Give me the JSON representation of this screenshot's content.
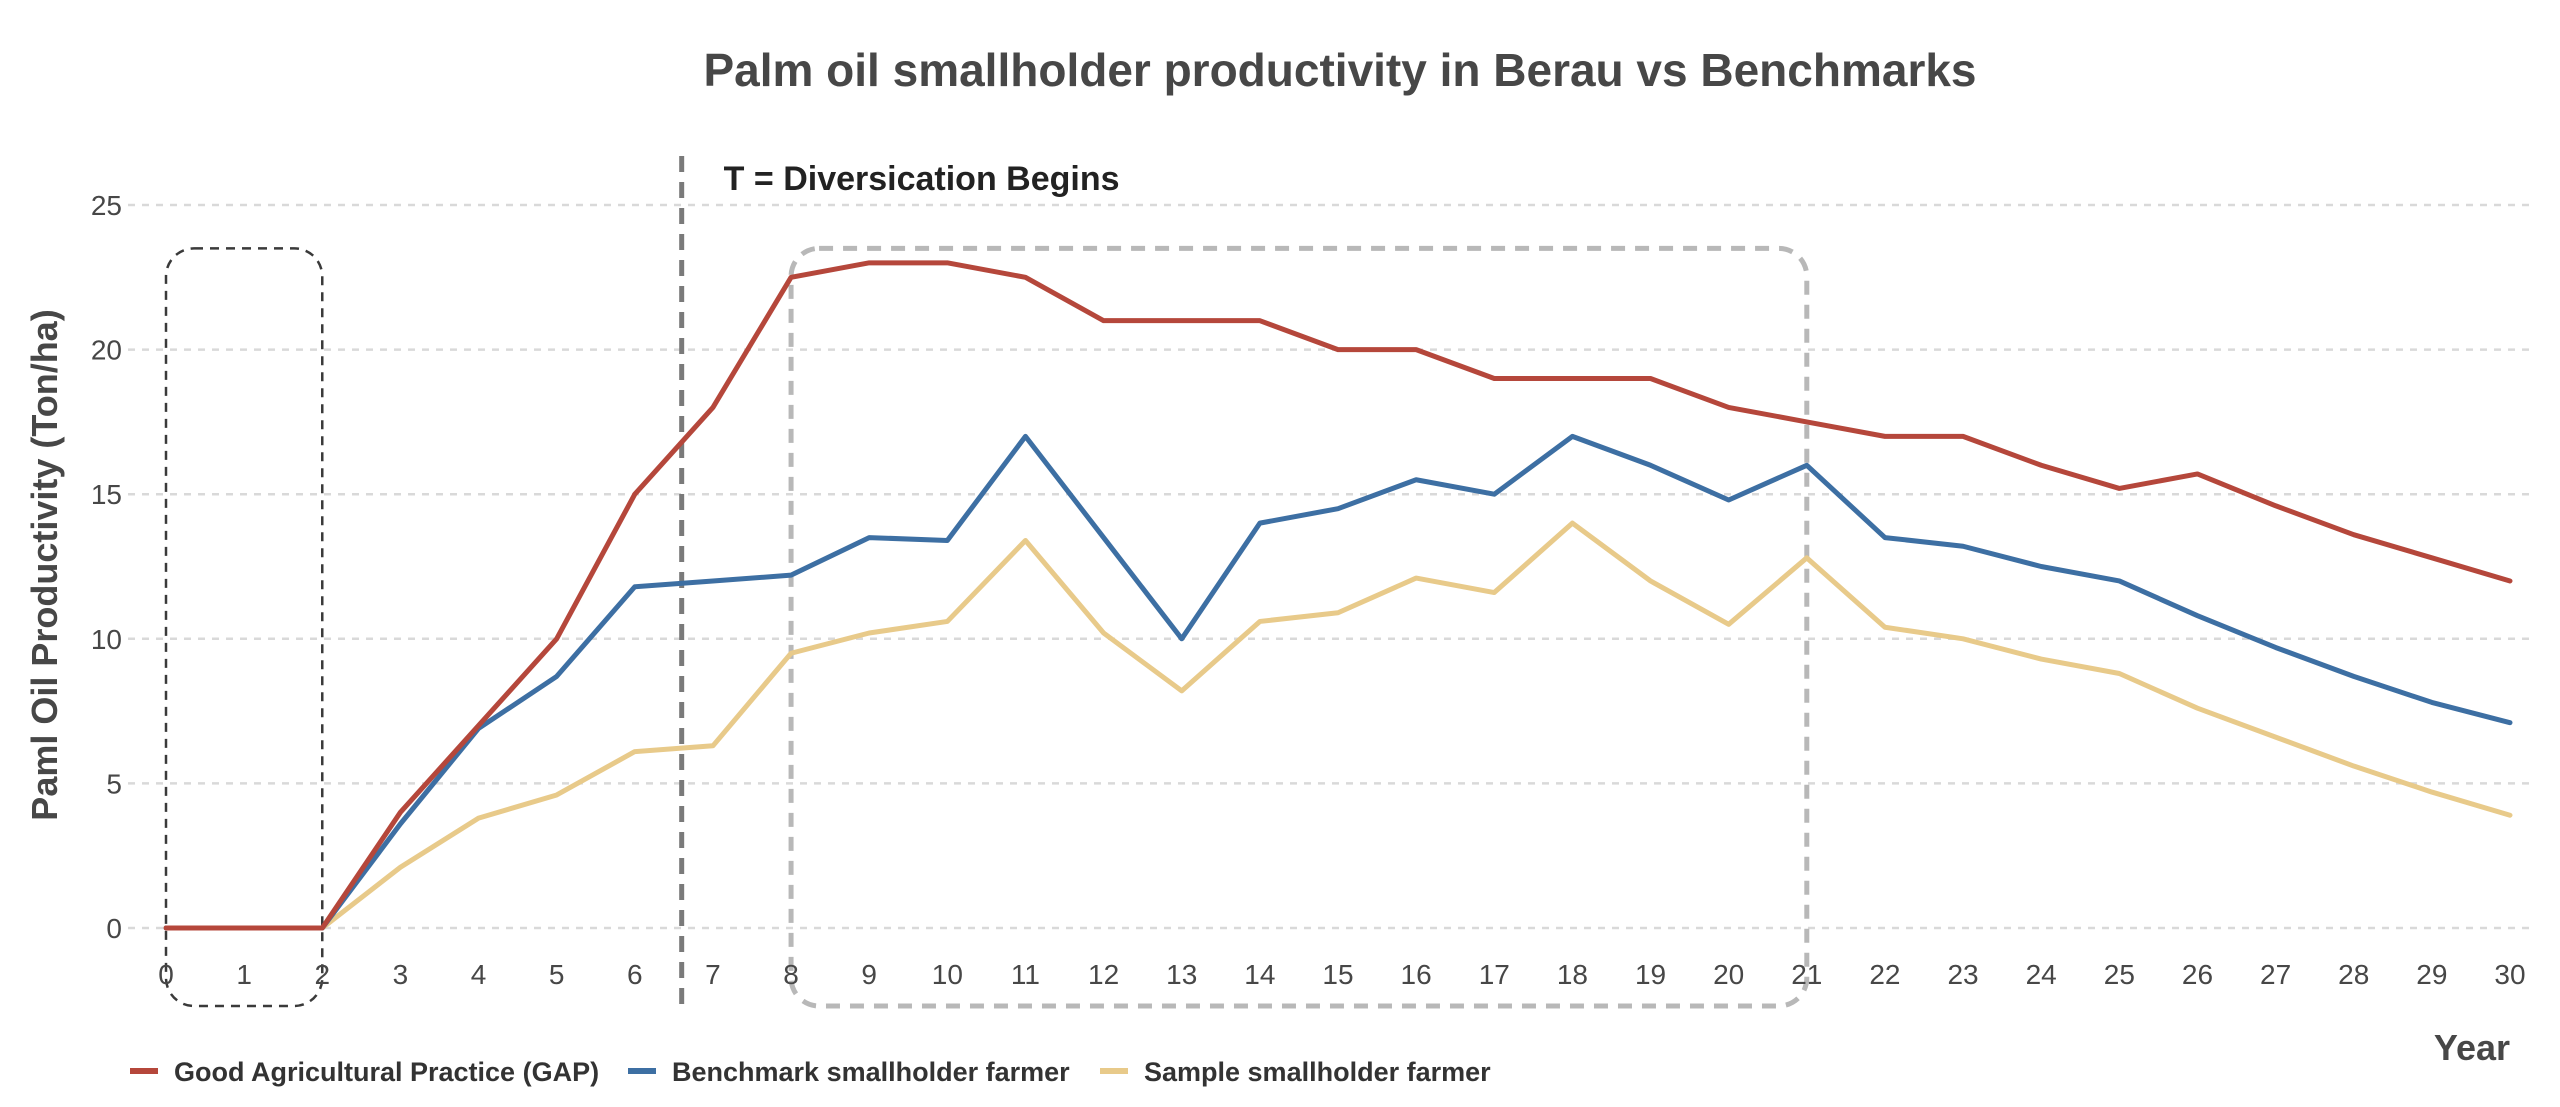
{
  "chart_data": {
    "type": "line",
    "title": "Palm oil smallholder productivity in Berau vs Benchmarks",
    "xlabel": "Year",
    "ylabel": "Paml Oil Productivity (Ton/ha)",
    "xlim": [
      0,
      30
    ],
    "ylim": [
      0,
      25
    ],
    "yticks": [
      0,
      5,
      10,
      15,
      20,
      25
    ],
    "x": [
      0,
      1,
      2,
      3,
      4,
      5,
      6,
      7,
      8,
      9,
      10,
      11,
      12,
      13,
      14,
      15,
      16,
      17,
      18,
      19,
      20,
      21,
      22,
      23,
      24,
      25,
      26,
      27,
      28,
      29,
      30
    ],
    "grid": "horizontal dashed",
    "legend_position": "bottom-left",
    "annotation": {
      "text": "T = Diversication Begins",
      "x": 6.6
    },
    "highlight_ranges": [
      {
        "x_start": 0,
        "x_end": 2,
        "y_start": 0,
        "y_end": 23.5,
        "style": "dark-dashed"
      },
      {
        "x_start": 8,
        "x_end": 21,
        "y_start": 0,
        "y_end": 23.5,
        "style": "gray-dashed"
      }
    ],
    "series": [
      {
        "name": "Good Agricultural Practice (GAP)",
        "color": "#b5473b",
        "values": [
          0,
          0,
          0,
          4,
          7,
          10,
          15,
          18,
          22.5,
          23,
          23,
          22.5,
          21,
          21,
          21,
          20,
          20,
          19,
          19,
          19,
          18,
          17.5,
          17,
          17,
          16,
          15.2,
          15.7,
          14.6,
          13.6,
          12.8,
          12
        ]
      },
      {
        "name": "Benchmark smallholder farmer",
        "color": "#3d6fa3",
        "values": [
          0,
          0,
          0,
          3.6,
          6.9,
          8.7,
          11.8,
          12,
          12.2,
          13.5,
          13.4,
          17,
          13.5,
          10,
          14,
          14.5,
          15.5,
          15,
          17,
          16,
          14.8,
          16,
          13.5,
          13.2,
          12.5,
          12,
          10.8,
          9.7,
          8.7,
          7.8,
          7.1
        ]
      },
      {
        "name": "Sample smallholder farmer",
        "color": "#e8ca8a",
        "values": [
          0,
          0,
          0,
          2.1,
          3.8,
          4.6,
          6.1,
          6.3,
          9.5,
          10.2,
          10.6,
          13.4,
          10.2,
          8.2,
          10.6,
          10.9,
          12.1,
          11.6,
          14,
          12,
          10.5,
          12.8,
          10.4,
          10,
          9.3,
          8.8,
          7.6,
          6.6,
          5.6,
          4.7,
          3.9
        ]
      }
    ]
  }
}
